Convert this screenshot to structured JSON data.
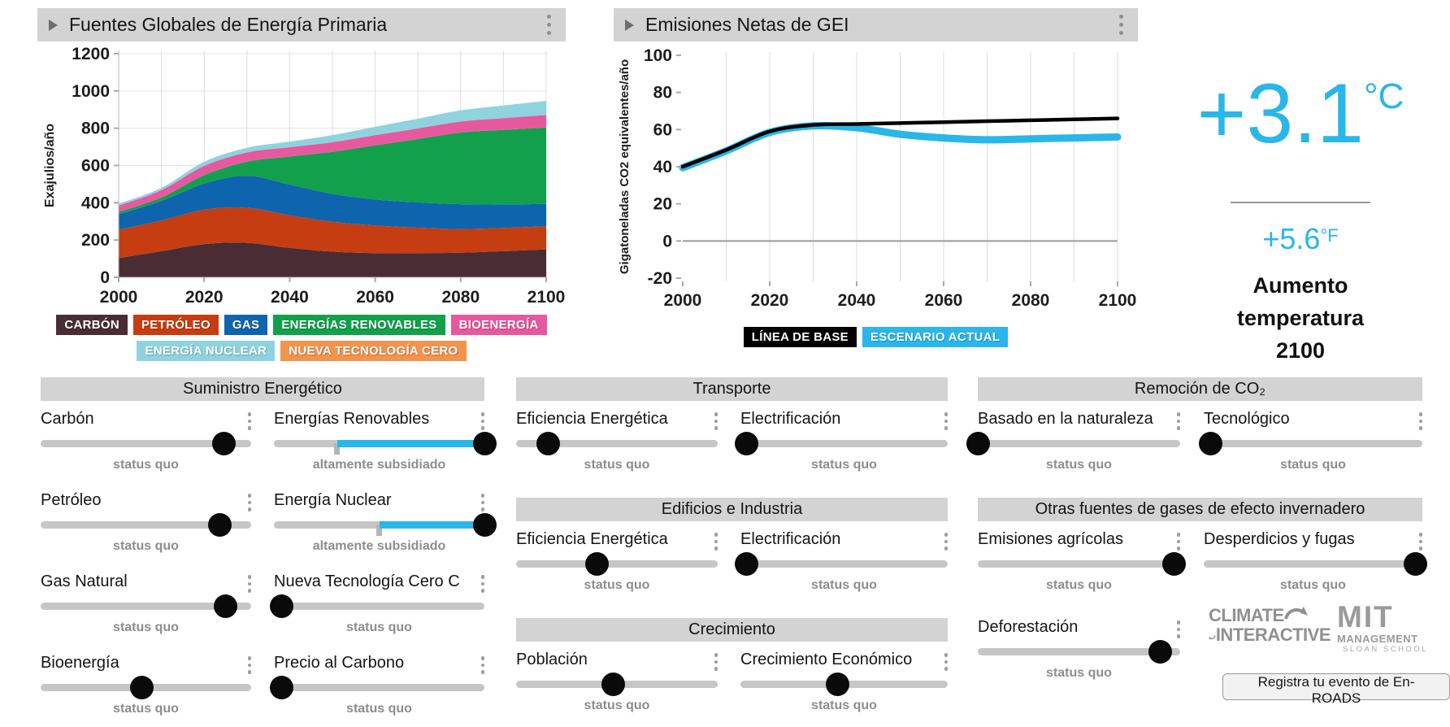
{
  "app": {
    "name": "En-ROADS"
  },
  "colors": {
    "accent_cyan": "#29b6ea",
    "header_bg": "#d3d3d3",
    "status_text": "#8d8d8d"
  },
  "charts": {
    "energy": {
      "title": "Fuentes Globales de Energía Primaria",
      "ylabel": "Exajulios/año"
    },
    "emissions": {
      "title": "Emisiones Netas de GEI",
      "ylabel": "Gigatoneladas CO2 equivalentes/año",
      "legend": [
        {
          "label": "LÍNEA DE BASE",
          "color": "#000000"
        },
        {
          "label": "ESCENARIO ACTUAL",
          "color": "#29b6ea"
        }
      ]
    }
  },
  "chart_data": [
    {
      "type": "area",
      "title": "Fuentes Globales de Energía Primaria",
      "ylabel": "Exajulios/año",
      "x": [
        2000,
        2010,
        2020,
        2030,
        2040,
        2050,
        2060,
        2070,
        2080,
        2090,
        2100
      ],
      "ylim": [
        0,
        1200
      ],
      "yticks": [
        0,
        200,
        400,
        600,
        800,
        1000,
        1200
      ],
      "series": [
        {
          "name": "CARBÓN",
          "color": "#4a2d34",
          "values": [
            103,
            140,
            178,
            185,
            158,
            138,
            130,
            130,
            132,
            140,
            150
          ]
        },
        {
          "name": "PETRÓLEO",
          "color": "#c63d11",
          "values": [
            152,
            165,
            185,
            188,
            175,
            160,
            148,
            136,
            127,
            125,
            124
          ]
        },
        {
          "name": "GAS",
          "color": "#0f65ad",
          "values": [
            84,
            105,
            140,
            172,
            165,
            150,
            140,
            136,
            133,
            126,
            120
          ]
        },
        {
          "name": "ENERGÍAS RENOVABLES",
          "color": "#12a04d",
          "values": [
            12,
            18,
            45,
            75,
            150,
            225,
            290,
            340,
            385,
            400,
            410
          ]
        },
        {
          "name": "BIOENERGÍA",
          "color": "#e7599f",
          "values": [
            34,
            40,
            50,
            50,
            50,
            52,
            55,
            57,
            59,
            63,
            67
          ]
        },
        {
          "name": "ENERGÍA NUCLEAR",
          "color": "#8fd3de",
          "values": [
            10,
            12,
            22,
            25,
            30,
            38,
            45,
            52,
            60,
            68,
            76
          ]
        },
        {
          "name": "NUEVA TECNOLOGÍA CERO",
          "color": "#f0944e",
          "values": [
            0,
            0,
            0,
            0,
            0,
            0,
            0,
            0,
            0,
            0,
            0
          ]
        }
      ]
    },
    {
      "type": "line",
      "title": "Emisiones Netas de GEI",
      "ylabel": "Gigatoneladas CO2 equivalentes/año",
      "x": [
        2000,
        2010,
        2020,
        2030,
        2040,
        2050,
        2060,
        2070,
        2080,
        2090,
        2100
      ],
      "ylim": [
        -20,
        100
      ],
      "yticks": [
        -20,
        0,
        20,
        40,
        60,
        80,
        100
      ],
      "series": [
        {
          "name": "ESCENARIO ACTUAL",
          "color": "#29b6ea",
          "width": 9,
          "values": [
            39.5,
            48.5,
            58.5,
            62,
            61,
            57.5,
            55.5,
            54.5,
            55,
            55.5,
            56
          ]
        },
        {
          "name": "LÍNEA DE BASE",
          "color": "#000000",
          "width": 4.5,
          "values": [
            40,
            49,
            59,
            62.5,
            63,
            63.5,
            64,
            64.5,
            65,
            65.5,
            66
          ]
        }
      ]
    }
  ],
  "temperature": {
    "celsius": "+3.1",
    "celsius_unit": "°C",
    "fahrenheit": "+5.6",
    "fahrenheit_unit": "°F",
    "caption": "Aumento temperatura 2100"
  },
  "controls": {
    "columns": [
      {
        "sections": [
          {
            "title": "Suministro Energético",
            "rows": [
              [
                {
                  "label": "Carbón",
                  "status": "status quo",
                  "value": 0.87,
                  "default": 0.87,
                  "filled": false
                },
                {
                  "label": "Energías Renovables",
                  "status": "altamente subsidiado",
                  "value": 1.0,
                  "default": 0.3,
                  "filled": true
                }
              ],
              [
                {
                  "label": "Petróleo",
                  "status": "status quo",
                  "value": 0.85,
                  "default": 0.85,
                  "filled": false
                },
                {
                  "label": "Energía Nuclear",
                  "status": "altamente subsidiado",
                  "value": 1.0,
                  "default": 0.5,
                  "filled": true
                }
              ],
              [
                {
                  "label": "Gas Natural",
                  "status": "status quo",
                  "value": 0.88,
                  "default": 0.88,
                  "filled": false
                },
                {
                  "label": "Nueva Tecnología Cero C",
                  "status": "status quo",
                  "value": 0.035,
                  "default": 0.035,
                  "filled": false
                }
              ],
              [
                {
                  "label": "Bioenergía",
                  "status": "status quo",
                  "value": 0.48,
                  "default": 0.48,
                  "filled": false
                },
                {
                  "label": "Precio al Carbono",
                  "status": "status quo",
                  "value": 0.035,
                  "default": 0.035,
                  "filled": false
                }
              ]
            ]
          }
        ]
      },
      {
        "sections": [
          {
            "title": "Transporte",
            "rows": [
              [
                {
                  "label": "Eficiencia Energética",
                  "status": "status quo",
                  "value": 0.16,
                  "default": 0.16,
                  "filled": false
                },
                {
                  "label": "Electrificación",
                  "status": "status quo",
                  "value": 0.03,
                  "default": 0.03,
                  "filled": false
                }
              ]
            ]
          },
          {
            "title": "Edificios e Industria",
            "rows": [
              [
                {
                  "label": "Eficiencia Energética",
                  "status": "status quo",
                  "value": 0.4,
                  "default": 0.4,
                  "filled": false
                },
                {
                  "label": "Electrificación",
                  "status": "status quo",
                  "value": 0.03,
                  "default": 0.03,
                  "filled": false
                }
              ]
            ]
          },
          {
            "title": "Crecimiento",
            "rows": [
              [
                {
                  "label": "Población",
                  "status": "status quo",
                  "value": 0.48,
                  "default": 0.48,
                  "filled": false
                },
                {
                  "label": "Crecimiento Económico",
                  "status": "status quo",
                  "value": 0.47,
                  "default": 0.47,
                  "filled": false
                }
              ]
            ]
          }
        ]
      },
      {
        "sections": [
          {
            "title": "Remoción de CO₂",
            "rows": [
              [
                {
                  "label": "Basado en la naturaleza",
                  "status": "status quo",
                  "value": 0.0,
                  "default": 0.0,
                  "filled": false
                },
                {
                  "label": "Tecnológico",
                  "status": "status quo",
                  "value": 0.03,
                  "default": 0.03,
                  "filled": false
                }
              ]
            ]
          },
          {
            "title": "Otras fuentes de gases de efecto invernadero",
            "rows": [
              [
                {
                  "label": "Emisiones agrícolas",
                  "status": "status quo",
                  "value": 0.97,
                  "default": 0.97,
                  "filled": false
                },
                {
                  "label": "Desperdicios y fugas",
                  "status": "status quo",
                  "value": 0.97,
                  "default": 0.97,
                  "filled": false
                }
              ]
            ]
          },
          {
            "title": null,
            "rows": [
              [
                {
                  "label": "Deforestación",
                  "status": "status quo",
                  "value": 0.9,
                  "default": 0.9,
                  "filled": false
                },
                null
              ]
            ]
          }
        ]
      }
    ]
  },
  "footer": {
    "ci_line1": "CLIMATE",
    "ci_line2": "INTERACTIVE",
    "mit_line1": "MIT",
    "mit_line2": "MANAGEMENT",
    "mit_line3": "SLOAN SCHOOL",
    "register_label": "Registra tu evento de En-ROADS"
  }
}
